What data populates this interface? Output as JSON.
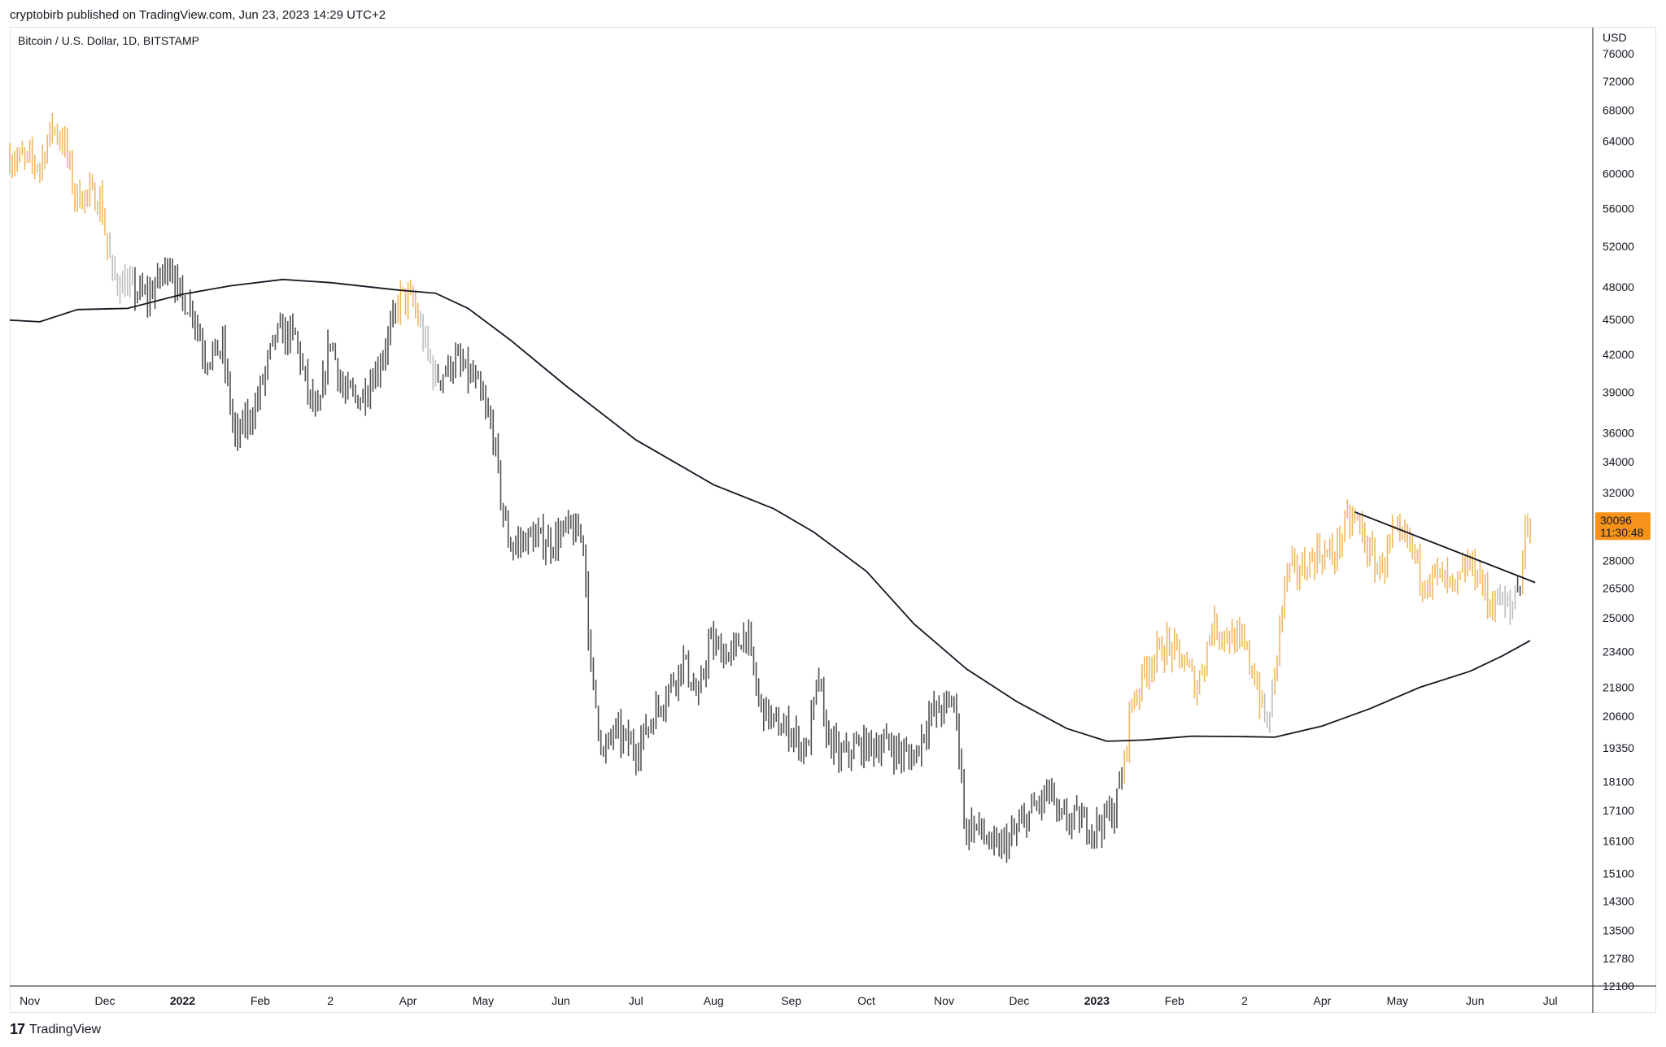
{
  "header": {
    "published_line": "cryptobirb published on TradingView.com, Jun 23, 2023 14:29 UTC+2"
  },
  "chart_data": {
    "type": "bar",
    "title": "Bitcoin / U.S. Dollar, 1D, BITSTAMP",
    "y_axis_unit": "USD",
    "y_scale": "log",
    "ylim": [
      12100,
      80000
    ],
    "y_ticks": [
      76000,
      72000,
      68000,
      64000,
      60000,
      56000,
      52000,
      48000,
      45000,
      42000,
      39000,
      36000,
      34000,
      32000,
      28000,
      26500,
      25000,
      23400,
      21800,
      20600,
      19350,
      18100,
      17100,
      16100,
      15100,
      14300,
      13500,
      12780,
      12100
    ],
    "x_ticks": [
      {
        "label": "Nov",
        "date": "2021-11-01",
        "bold": false
      },
      {
        "label": "Dec",
        "date": "2021-12-01",
        "bold": false
      },
      {
        "label": "2022",
        "date": "2022-01-01",
        "bold": true
      },
      {
        "label": "Feb",
        "date": "2022-02-01",
        "bold": false
      },
      {
        "label": "2",
        "date": "2022-03-01",
        "bold": false
      },
      {
        "label": "Apr",
        "date": "2022-04-01",
        "bold": false
      },
      {
        "label": "May",
        "date": "2022-05-01",
        "bold": false
      },
      {
        "label": "Jun",
        "date": "2022-06-01",
        "bold": false
      },
      {
        "label": "Jul",
        "date": "2022-07-01",
        "bold": false
      },
      {
        "label": "Aug",
        "date": "2022-08-01",
        "bold": false
      },
      {
        "label": "Sep",
        "date": "2022-09-01",
        "bold": false
      },
      {
        "label": "Oct",
        "date": "2022-10-01",
        "bold": false
      },
      {
        "label": "Nov",
        "date": "2022-11-01",
        "bold": false
      },
      {
        "label": "Dec",
        "date": "2022-12-01",
        "bold": false
      },
      {
        "label": "2023",
        "date": "2023-01-01",
        "bold": true
      },
      {
        "label": "Feb",
        "date": "2023-02-01",
        "bold": false
      },
      {
        "label": "2",
        "date": "2023-03-01",
        "bold": false
      },
      {
        "label": "Apr",
        "date": "2023-04-01",
        "bold": false
      },
      {
        "label": "May",
        "date": "2023-05-01",
        "bold": false
      },
      {
        "label": "Jun",
        "date": "2023-06-01",
        "bold": false
      },
      {
        "label": "Jul",
        "date": "2023-07-01",
        "bold": false
      }
    ],
    "xlim": [
      "2021-10-24",
      "2023-07-18"
    ],
    "price_path": [
      [
        "2021-10-24",
        62000
      ],
      [
        "2021-11-01",
        61500
      ],
      [
        "2021-11-05",
        61000
      ],
      [
        "2021-11-10",
        66000
      ],
      [
        "2021-11-15",
        63500
      ],
      [
        "2021-11-19",
        57500
      ],
      [
        "2021-11-25",
        57500
      ],
      [
        "2021-11-29",
        57000
      ],
      [
        "2021-12-04",
        49000
      ],
      [
        "2021-12-10",
        48000
      ],
      [
        "2021-12-18",
        47000
      ],
      [
        "2021-12-27",
        50500
      ],
      [
        "2021-12-31",
        47000
      ],
      [
        "2022-01-05",
        46000
      ],
      [
        "2022-01-10",
        41800
      ],
      [
        "2022-01-17",
        42500
      ],
      [
        "2022-01-22",
        35500
      ],
      [
        "2022-01-30",
        37900
      ],
      [
        "2022-02-07",
        43500
      ],
      [
        "2022-02-10",
        43800
      ],
      [
        "2022-02-15",
        43500
      ],
      [
        "2022-02-20",
        39000
      ],
      [
        "2022-02-24",
        37000
      ],
      [
        "2022-03-01",
        43500
      ],
      [
        "2022-03-06",
        39000
      ],
      [
        "2022-03-13",
        38500
      ],
      [
        "2022-03-20",
        41000
      ],
      [
        "2022-03-25",
        44000
      ],
      [
        "2022-03-29",
        47200
      ],
      [
        "2022-04-03",
        46500
      ],
      [
        "2022-04-07",
        43500
      ],
      [
        "2022-04-12",
        40000
      ],
      [
        "2022-04-20",
        41500
      ],
      [
        "2022-04-28",
        39700
      ],
      [
        "2022-05-05",
        36000
      ],
      [
        "2022-05-09",
        30500
      ],
      [
        "2022-05-12",
        28800
      ],
      [
        "2022-05-20",
        29300
      ],
      [
        "2022-05-28",
        29000
      ],
      [
        "2022-06-04",
        29800
      ],
      [
        "2022-06-10",
        29200
      ],
      [
        "2022-06-13",
        22500
      ],
      [
        "2022-06-18",
        19000
      ],
      [
        "2022-06-22",
        20000
      ],
      [
        "2022-07-01",
        19300
      ],
      [
        "2022-07-10",
        21000
      ],
      [
        "2022-07-20",
        23000
      ],
      [
        "2022-07-26",
        21200
      ],
      [
        "2022-07-30",
        23800
      ],
      [
        "2022-08-08",
        23200
      ],
      [
        "2022-08-14",
        24400
      ],
      [
        "2022-08-19",
        21200
      ],
      [
        "2022-08-26",
        20200
      ],
      [
        "2022-09-01",
        20000
      ],
      [
        "2022-09-07",
        19200
      ],
      [
        "2022-09-12",
        22300
      ],
      [
        "2022-09-14",
        20200
      ],
      [
        "2022-09-20",
        19000
      ],
      [
        "2022-09-28",
        19400
      ],
      [
        "2022-10-10",
        19500
      ],
      [
        "2022-10-15",
        19100
      ],
      [
        "2022-10-20",
        19000
      ],
      [
        "2022-10-26",
        20600
      ],
      [
        "2022-11-05",
        21200
      ],
      [
        "2022-11-08",
        18500
      ],
      [
        "2022-11-09",
        16500
      ],
      [
        "2022-11-14",
        16600
      ],
      [
        "2022-11-21",
        15800
      ],
      [
        "2022-11-28",
        16200
      ],
      [
        "2022-12-05",
        17000
      ],
      [
        "2022-12-14",
        17800
      ],
      [
        "2022-12-16",
        16800
      ],
      [
        "2022-12-24",
        16800
      ],
      [
        "2022-12-31",
        16550
      ],
      [
        "2023-01-08",
        17100
      ],
      [
        "2023-01-12",
        18800
      ],
      [
        "2023-01-14",
        20800
      ],
      [
        "2023-01-21",
        22800
      ],
      [
        "2023-01-29",
        23700
      ],
      [
        "2023-02-05",
        22900
      ],
      [
        "2023-02-10",
        21800
      ],
      [
        "2023-02-16",
        24600
      ],
      [
        "2023-02-22",
        24200
      ],
      [
        "2023-03-01",
        23600
      ],
      [
        "2023-03-05",
        22300
      ],
      [
        "2023-03-10",
        20100
      ],
      [
        "2023-03-13",
        22300
      ],
      [
        "2023-03-15",
        24700
      ],
      [
        "2023-03-18",
        27400
      ],
      [
        "2023-03-24",
        27500
      ],
      [
        "2023-03-30",
        28400
      ],
      [
        "2023-04-05",
        28200
      ],
      [
        "2023-04-11",
        30200
      ],
      [
        "2023-04-15",
        30300
      ],
      [
        "2023-04-20",
        28300
      ],
      [
        "2023-04-24",
        27500
      ],
      [
        "2023-04-29",
        29300
      ],
      [
        "2023-05-06",
        29000
      ],
      [
        "2023-05-11",
        27000
      ],
      [
        "2023-05-17",
        27200
      ],
      [
        "2023-05-24",
        26400
      ],
      [
        "2023-05-29",
        27800
      ],
      [
        "2023-06-03",
        27200
      ],
      [
        "2023-06-06",
        25700
      ],
      [
        "2023-06-10",
        26000
      ],
      [
        "2023-06-15",
        25300
      ],
      [
        "2023-06-17",
        26400
      ],
      [
        "2023-06-19",
        26800
      ],
      [
        "2023-06-21",
        30000
      ],
      [
        "2023-06-23",
        30096
      ]
    ],
    "overlay_line_points": [
      [
        "2021-10-24",
        44950
      ],
      [
        "2021-11-05",
        44800
      ],
      [
        "2021-11-20",
        45900
      ],
      [
        "2021-12-10",
        46000
      ],
      [
        "2022-01-01",
        47300
      ],
      [
        "2022-01-20",
        48100
      ],
      [
        "2022-02-10",
        48700
      ],
      [
        "2022-03-01",
        48400
      ],
      [
        "2022-03-28",
        47700
      ],
      [
        "2022-04-12",
        47400
      ],
      [
        "2022-04-25",
        46000
      ],
      [
        "2022-05-12",
        43200
      ],
      [
        "2022-06-03",
        39500
      ],
      [
        "2022-07-01",
        35500
      ],
      [
        "2022-08-01",
        32500
      ],
      [
        "2022-08-25",
        31000
      ],
      [
        "2022-09-10",
        29600
      ],
      [
        "2022-10-01",
        27400
      ],
      [
        "2022-10-20",
        24700
      ],
      [
        "2022-11-10",
        22600
      ],
      [
        "2022-11-30",
        21200
      ],
      [
        "2022-12-20",
        20100
      ],
      [
        "2023-01-05",
        19600
      ],
      [
        "2023-01-20",
        19650
      ],
      [
        "2023-02-08",
        19800
      ],
      [
        "2023-03-01",
        19780
      ],
      [
        "2023-03-13",
        19760
      ],
      [
        "2023-04-01",
        20200
      ],
      [
        "2023-04-20",
        20900
      ],
      [
        "2023-05-10",
        21800
      ],
      [
        "2023-05-30",
        22500
      ],
      [
        "2023-06-12",
        23200
      ],
      [
        "2023-06-23",
        23900
      ]
    ],
    "trendline": {
      "start": [
        "2023-04-14",
        30800
      ],
      "end": [
        "2023-06-25",
        26800
      ]
    },
    "last_price": {
      "value": "30096",
      "countdown": "11:30:48",
      "color": "#f7931a"
    },
    "colors": {
      "up": "#f0b760",
      "down": "#505050",
      "neutral": "#bdbdbd",
      "line": "#131722"
    }
  },
  "footer": {
    "logo_text": "TradingView",
    "logo_mark": "17"
  }
}
